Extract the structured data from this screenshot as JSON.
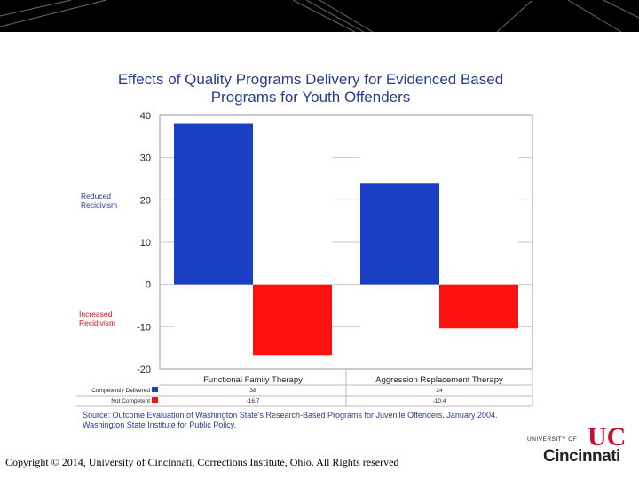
{
  "chart_data": {
    "type": "bar",
    "title": [
      "Effects of Quality Programs Delivery for Evidenced Based",
      "Programs for Youth Offenders"
    ],
    "categories": [
      "Functional Family Therapy",
      "Aggression Replacement Therapy"
    ],
    "series": [
      {
        "name": "Competently Delivered",
        "values": [
          38,
          24
        ],
        "labels": [
          "38",
          "24"
        ],
        "color": "#1a3fc4"
      },
      {
        "name": "Not Competent",
        "values": [
          -16.7,
          -10.4
        ],
        "labels": [
          "-16.7",
          "-10.4"
        ],
        "color": "#ff1010"
      }
    ],
    "ylim": [
      -20,
      40
    ],
    "yticks": [
      40,
      30,
      20,
      10,
      0,
      -10,
      -20
    ],
    "annotations": {
      "reduced": [
        "Reduced",
        "Recidivism"
      ],
      "increased": [
        "Increased",
        "Recidivism"
      ]
    },
    "annotation_colors": {
      "reduced": "#2a3b8f",
      "increased": "#e01010"
    }
  },
  "source": "Source: Outcome Evaluation of Washington State's Research-Based Programs for Juvenile Offenders. January 2004. Washington State Institute for Public Policy.",
  "copyright": "Copyright © 2014, University of Cincinnati, Corrections Institute, Ohio. All Rights reserved",
  "logo": {
    "university": "UNIVERSITY OF",
    "city": "Cincinnati",
    "mark": "UC"
  },
  "colors": {
    "top_band": "#000000",
    "title": "#2a3b8f",
    "logo_red": "#c8102e"
  }
}
